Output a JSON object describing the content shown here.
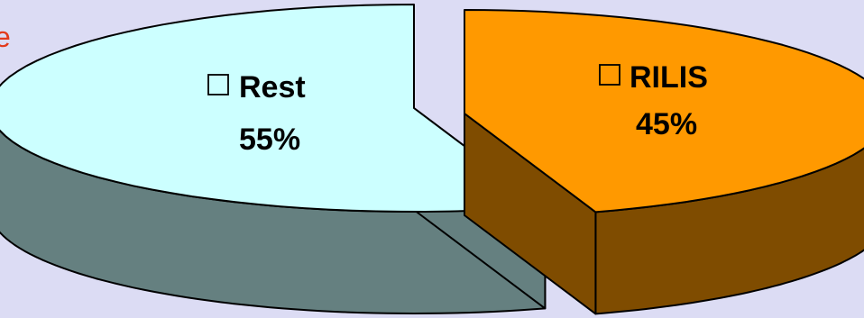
{
  "chart_data": {
    "type": "pie",
    "title": "",
    "slices": [
      {
        "label": "Rest",
        "value": 55,
        "value_label": "55%",
        "color": "#ccffff",
        "side_color": "#658080"
      },
      {
        "label": "RILIS",
        "value": 45,
        "value_label": "45%",
        "color": "#ff9900",
        "side_color": "#7f4c00"
      }
    ],
    "exploded": true,
    "three_d": true,
    "legend": "none",
    "edge_text": "e",
    "edge_text_color": "#e33a1c",
    "background_color": "#dcdcf4"
  }
}
